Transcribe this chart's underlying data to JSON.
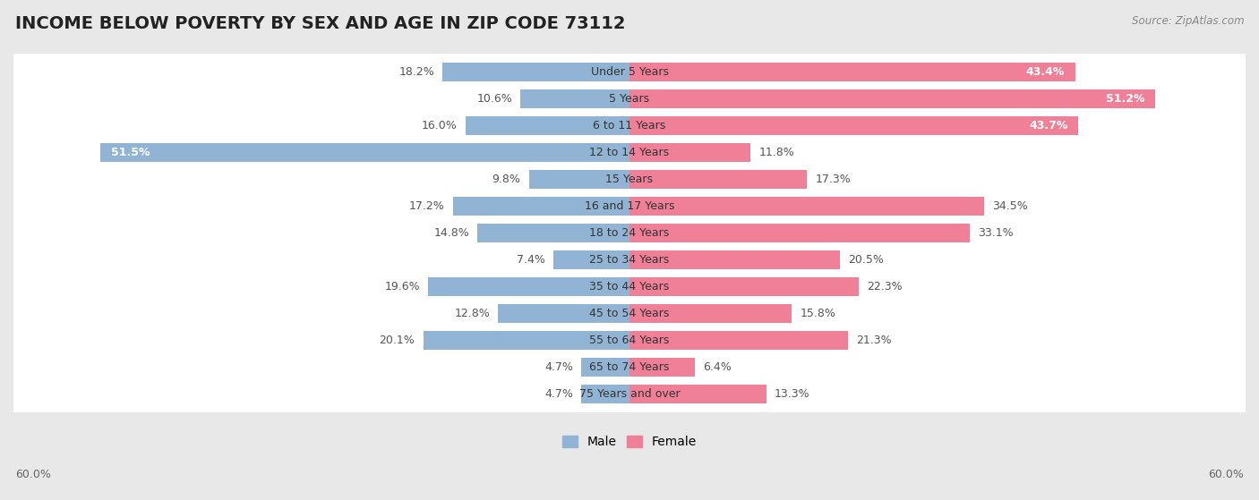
{
  "title": "INCOME BELOW POVERTY BY SEX AND AGE IN ZIP CODE 73112",
  "source": "Source: ZipAtlas.com",
  "categories": [
    "Under 5 Years",
    "5 Years",
    "6 to 11 Years",
    "12 to 14 Years",
    "15 Years",
    "16 and 17 Years",
    "18 to 24 Years",
    "25 to 34 Years",
    "35 to 44 Years",
    "45 to 54 Years",
    "55 to 64 Years",
    "65 to 74 Years",
    "75 Years and over"
  ],
  "male_values": [
    18.2,
    10.6,
    16.0,
    51.5,
    9.8,
    17.2,
    14.8,
    7.4,
    19.6,
    12.8,
    20.1,
    4.7,
    4.7
  ],
  "female_values": [
    43.4,
    51.2,
    43.7,
    11.8,
    17.3,
    34.5,
    33.1,
    20.5,
    22.3,
    15.8,
    21.3,
    6.4,
    13.3
  ],
  "male_color": "#92b4d4",
  "female_color": "#f08098",
  "background_color": "#e8e8e8",
  "row_bg_color": "#ffffff",
  "axis_limit": 60.0,
  "legend_male": "Male",
  "legend_female": "Female",
  "title_fontsize": 14,
  "label_fontsize": 9,
  "tick_fontsize": 9,
  "male_label_threshold": 30,
  "female_label_threshold": 35
}
